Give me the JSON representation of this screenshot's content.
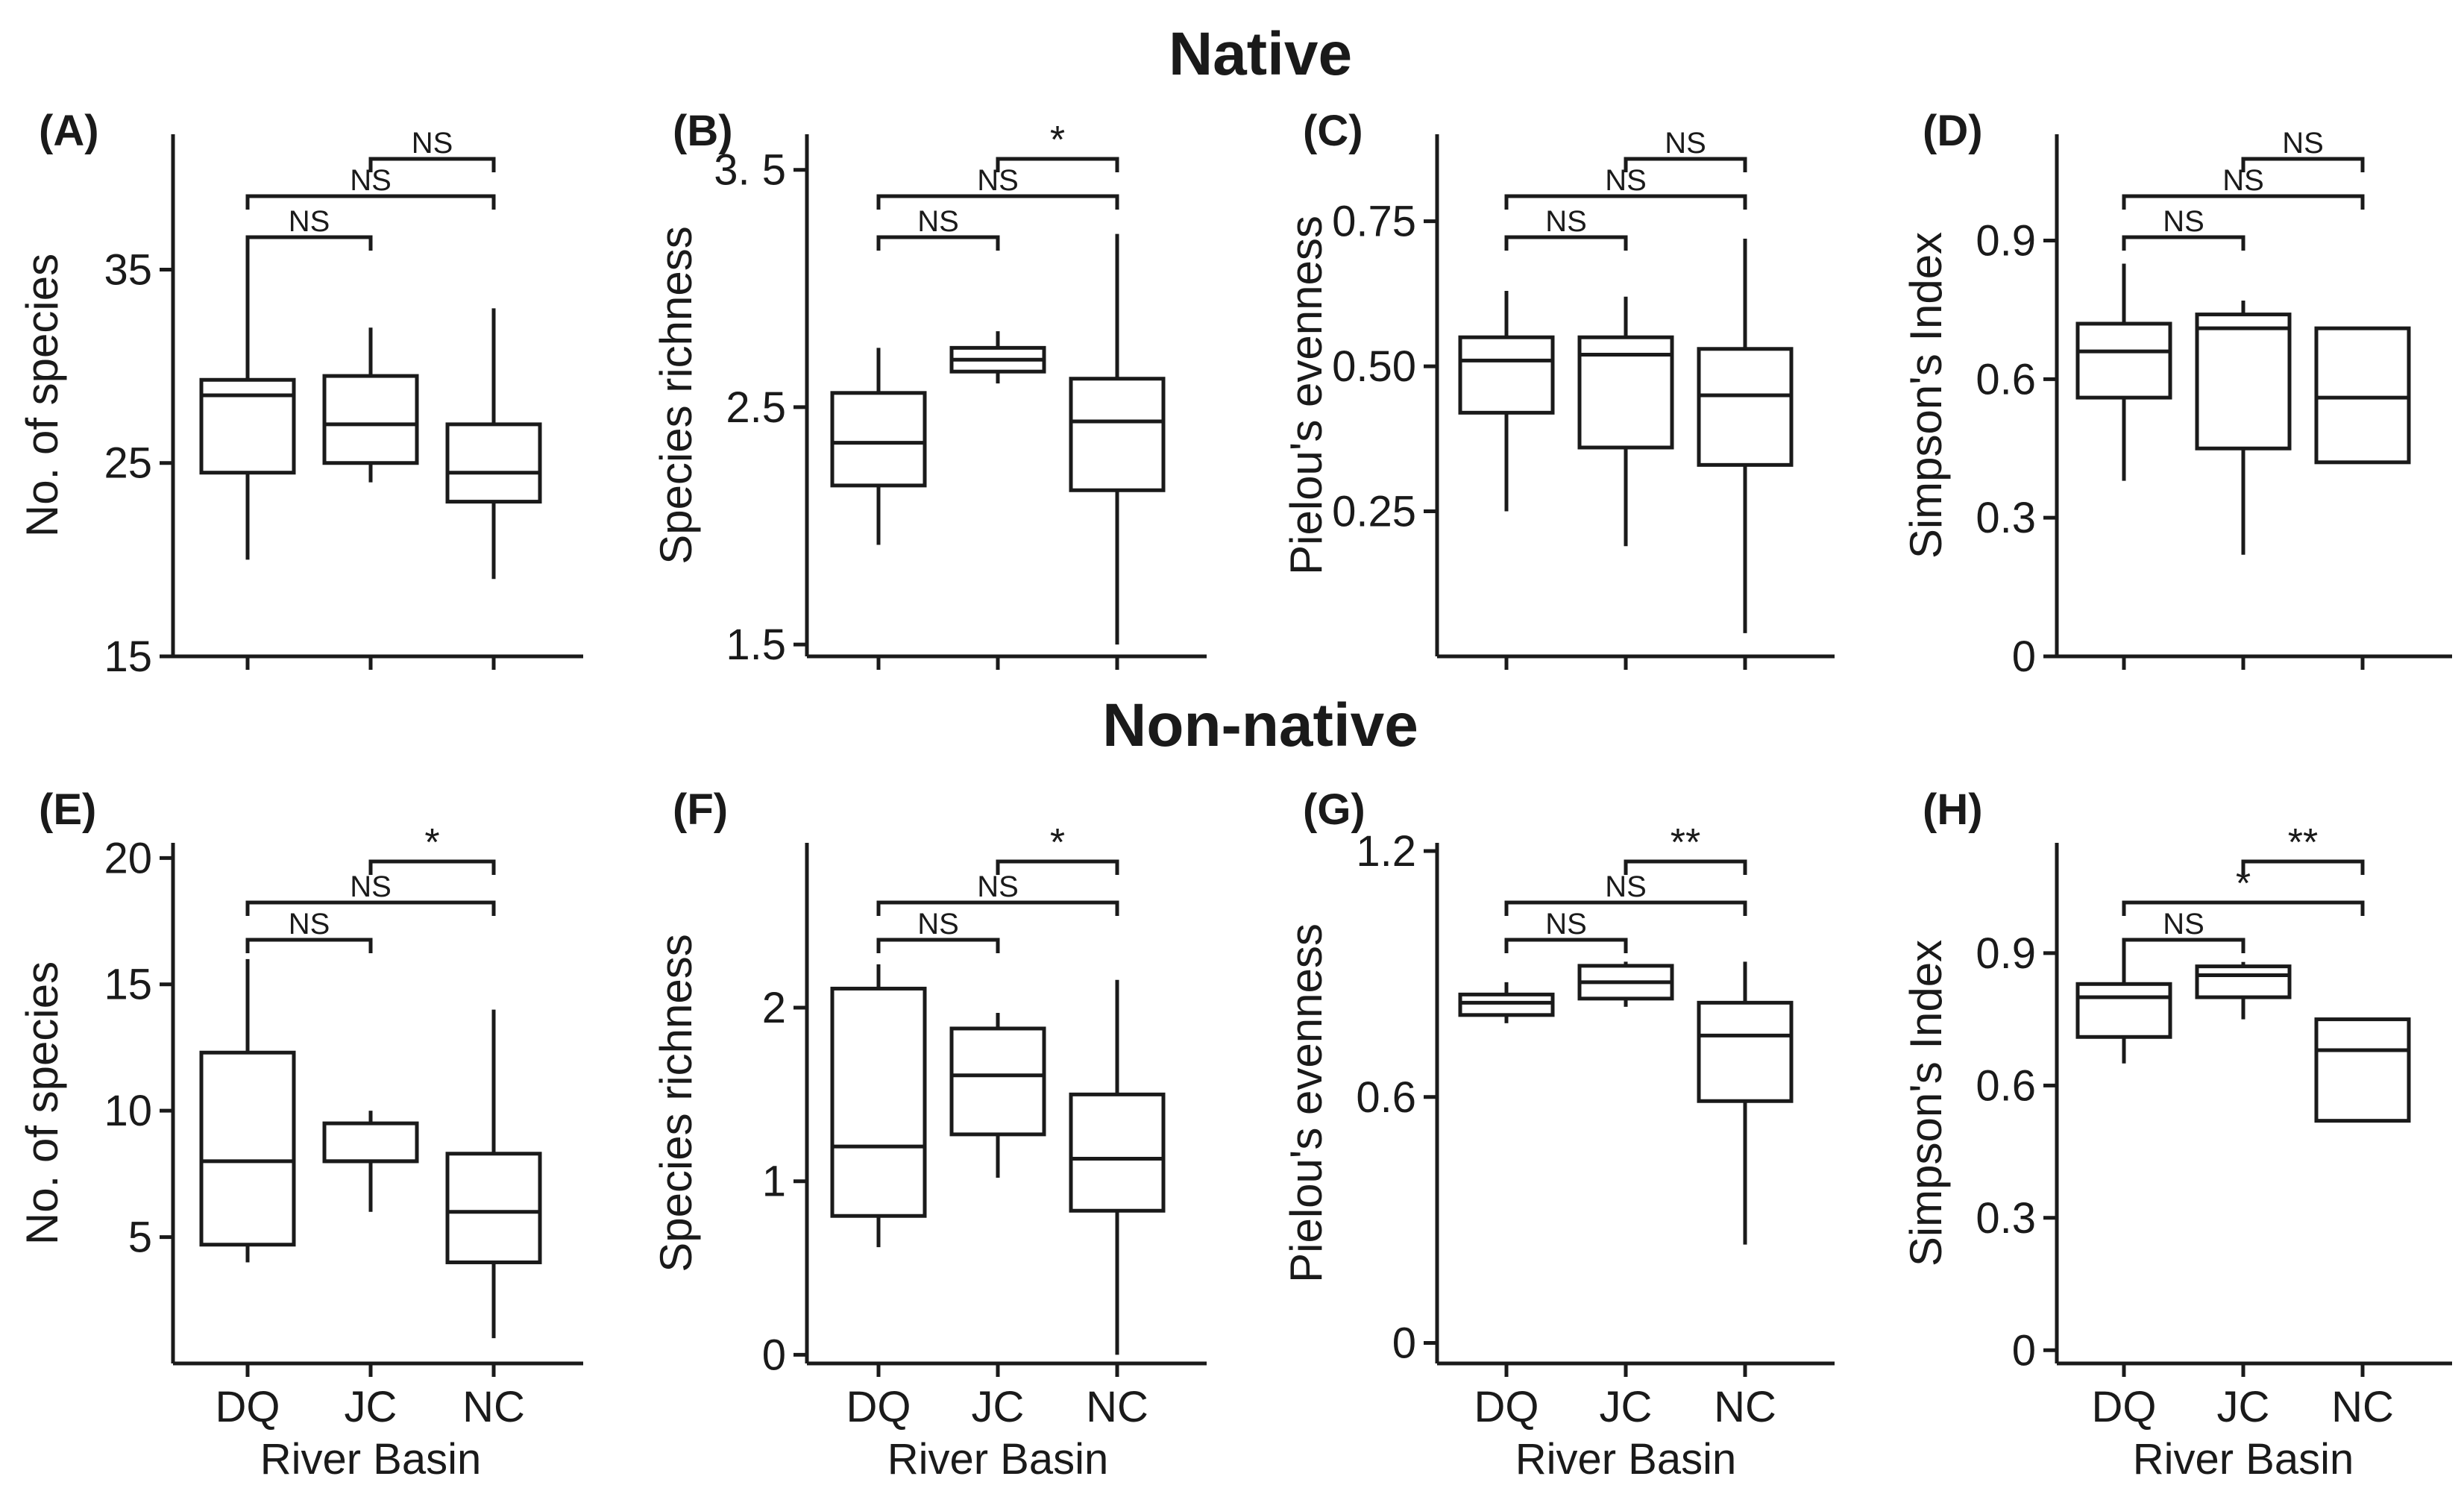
{
  "figure": {
    "row_titles": [
      "Native",
      "Non-native"
    ],
    "xlabel": "River Basin",
    "categories": [
      "DQ",
      "JC",
      "NC"
    ]
  },
  "chart_data": [
    {
      "type": "boxplot",
      "panel": "(A)",
      "group": "Native",
      "ylabel": "No. of species",
      "ylim": [
        15,
        42
      ],
      "yticks": [
        15,
        25,
        35
      ],
      "tick_labels": [
        "15",
        "25",
        "35"
      ],
      "categories": [
        "DQ",
        "JC",
        "NC"
      ],
      "boxes": [
        {
          "category": "DQ",
          "whisker_low": 20,
          "q1": 24.5,
          "median": 28.5,
          "q3": 29.3,
          "whisker_high": 36
        },
        {
          "category": "JC",
          "whisker_low": 24,
          "q1": 25,
          "median": 27,
          "q3": 29.5,
          "whisker_high": 32
        },
        {
          "category": "NC",
          "whisker_low": 19,
          "q1": 23,
          "median": 24.5,
          "q3": 27,
          "whisker_high": 33
        }
      ],
      "comparisons": [
        {
          "from": "DQ",
          "to": "JC",
          "label": "NS",
          "level": 0
        },
        {
          "from": "DQ",
          "to": "NC",
          "label": "NS",
          "level": 1
        },
        {
          "from": "JC",
          "to": "NC",
          "label": "NS",
          "level": 2
        }
      ]
    },
    {
      "type": "boxplot",
      "panel": "(B)",
      "group": "Native",
      "ylabel": "Species richness",
      "ylim": [
        1.45,
        3.65
      ],
      "yticks": [
        1.5,
        2.5,
        3.5
      ],
      "tick_labels": [
        "1.5",
        "2.5",
        "3. 5"
      ],
      "categories": [
        "DQ",
        "JC",
        "NC"
      ],
      "boxes": [
        {
          "category": "DQ",
          "whisker_low": 1.92,
          "q1": 2.17,
          "median": 2.35,
          "q3": 2.56,
          "whisker_high": 2.75
        },
        {
          "category": "JC",
          "whisker_low": 2.6,
          "q1": 2.65,
          "median": 2.7,
          "q3": 2.75,
          "whisker_high": 2.82
        },
        {
          "category": "NC",
          "whisker_low": 1.5,
          "q1": 2.15,
          "median": 2.44,
          "q3": 2.62,
          "whisker_high": 3.23
        }
      ],
      "comparisons": [
        {
          "from": "DQ",
          "to": "JC",
          "label": "NS",
          "level": 0
        },
        {
          "from": "DQ",
          "to": "NC",
          "label": "NS",
          "level": 1
        },
        {
          "from": "JC",
          "to": "NC",
          "label": "*",
          "level": 2
        }
      ]
    },
    {
      "type": "boxplot",
      "panel": "(C)",
      "group": "Native",
      "ylabel": "Pielou's evenness",
      "ylim": [
        0,
        0.9
      ],
      "yticks": [
        0.25,
        0.5,
        0.75
      ],
      "tick_labels": [
        "0.25",
        "0.50",
        "0.75"
      ],
      "categories": [
        "DQ",
        "JC",
        "NC"
      ],
      "boxes": [
        {
          "category": "DQ",
          "whisker_low": 0.25,
          "q1": 0.42,
          "median": 0.51,
          "q3": 0.55,
          "whisker_high": 0.63
        },
        {
          "category": "JC",
          "whisker_low": 0.19,
          "q1": 0.36,
          "median": 0.52,
          "q3": 0.55,
          "whisker_high": 0.62
        },
        {
          "category": "NC",
          "whisker_low": 0.04,
          "q1": 0.33,
          "median": 0.45,
          "q3": 0.53,
          "whisker_high": 0.72
        }
      ],
      "comparisons": [
        {
          "from": "DQ",
          "to": "JC",
          "label": "NS",
          "level": 0
        },
        {
          "from": "DQ",
          "to": "NC",
          "label": "NS",
          "level": 1
        },
        {
          "from": "JC",
          "to": "NC",
          "label": "NS",
          "level": 2
        }
      ]
    },
    {
      "type": "boxplot",
      "panel": "(D)",
      "group": "Native",
      "ylabel": "Simpson's Index",
      "ylim": [
        0,
        1.13
      ],
      "yticks": [
        0,
        0.3,
        0.6,
        0.9
      ],
      "tick_labels": [
        "0",
        "0.3",
        "0.6",
        "0.9"
      ],
      "categories": [
        "DQ",
        "JC",
        "NC"
      ],
      "boxes": [
        {
          "category": "DQ",
          "whisker_low": 0.38,
          "q1": 0.56,
          "median": 0.66,
          "q3": 0.72,
          "whisker_high": 0.85
        },
        {
          "category": "JC",
          "whisker_low": 0.22,
          "q1": 0.45,
          "median": 0.71,
          "q3": 0.74,
          "whisker_high": 0.77
        },
        {
          "category": "NC",
          "whisker_low": 0.42,
          "q1": 0.42,
          "median": 0.56,
          "q3": 0.71,
          "whisker_high": 0.71
        }
      ],
      "comparisons": [
        {
          "from": "DQ",
          "to": "JC",
          "label": "NS",
          "level": 0
        },
        {
          "from": "DQ",
          "to": "NC",
          "label": "NS",
          "level": 1
        },
        {
          "from": "JC",
          "to": "NC",
          "label": "NS",
          "level": 2
        }
      ]
    },
    {
      "type": "boxplot",
      "panel": "(E)",
      "group": "Non-native",
      "ylabel": "No. of species",
      "ylim": [
        0,
        20.6
      ],
      "yticks": [
        5,
        10,
        15,
        20
      ],
      "tick_labels": [
        "5",
        "10",
        "15",
        "20"
      ],
      "categories": [
        "DQ",
        "JC",
        "NC"
      ],
      "boxes": [
        {
          "category": "DQ",
          "whisker_low": 4,
          "q1": 4.7,
          "median": 8,
          "q3": 12.3,
          "whisker_high": 16
        },
        {
          "category": "JC",
          "whisker_low": 6,
          "q1": 8,
          "median": 8,
          "q3": 9.5,
          "whisker_high": 10
        },
        {
          "category": "NC",
          "whisker_low": 1,
          "q1": 4,
          "median": 6,
          "q3": 8.3,
          "whisker_high": 14
        }
      ],
      "comparisons": [
        {
          "from": "DQ",
          "to": "JC",
          "label": "NS",
          "level": 0
        },
        {
          "from": "DQ",
          "to": "NC",
          "label": "NS",
          "level": 1
        },
        {
          "from": "JC",
          "to": "NC",
          "label": "*",
          "level": 2
        }
      ]
    },
    {
      "type": "boxplot",
      "panel": "(F)",
      "group": "Non-native",
      "ylabel": "Species richness",
      "ylim": [
        -0.05,
        2.95
      ],
      "yticks": [
        0,
        1,
        2
      ],
      "tick_labels": [
        "0",
        "1",
        "2"
      ],
      "categories": [
        "DQ",
        "JC",
        "NC"
      ],
      "boxes": [
        {
          "category": "DQ",
          "whisker_low": 0.62,
          "q1": 0.8,
          "median": 1.2,
          "q3": 2.11,
          "whisker_high": 2.25
        },
        {
          "category": "JC",
          "whisker_low": 1.02,
          "q1": 1.27,
          "median": 1.61,
          "q3": 1.88,
          "whisker_high": 1.97
        },
        {
          "category": "NC",
          "whisker_low": 0,
          "q1": 0.83,
          "median": 1.13,
          "q3": 1.5,
          "whisker_high": 2.16
        }
      ],
      "comparisons": [
        {
          "from": "DQ",
          "to": "JC",
          "label": "NS",
          "level": 0
        },
        {
          "from": "DQ",
          "to": "NC",
          "label": "NS",
          "level": 1
        },
        {
          "from": "JC",
          "to": "NC",
          "label": "*",
          "level": 2
        }
      ]
    },
    {
      "type": "boxplot",
      "panel": "(G)",
      "group": "Non-native",
      "ylabel": "Pielou's evenness",
      "ylim": [
        -0.05,
        1.22
      ],
      "yticks": [
        0,
        0.6,
        1.2
      ],
      "tick_labels": [
        "0",
        "0.6",
        "1.2"
      ],
      "categories": [
        "DQ",
        "JC",
        "NC"
      ],
      "boxes": [
        {
          "category": "DQ",
          "whisker_low": 0.78,
          "q1": 0.8,
          "median": 0.83,
          "q3": 0.85,
          "whisker_high": 0.88
        },
        {
          "category": "JC",
          "whisker_low": 0.82,
          "q1": 0.84,
          "median": 0.88,
          "q3": 0.92,
          "whisker_high": 0.93
        },
        {
          "category": "NC",
          "whisker_low": 0.24,
          "q1": 0.59,
          "median": 0.75,
          "q3": 0.83,
          "whisker_high": 0.93
        }
      ],
      "comparisons": [
        {
          "from": "DQ",
          "to": "JC",
          "label": "NS",
          "level": 0
        },
        {
          "from": "DQ",
          "to": "NC",
          "label": "NS",
          "level": 1
        },
        {
          "from": "JC",
          "to": "NC",
          "label": "**",
          "level": 2
        }
      ]
    },
    {
      "type": "boxplot",
      "panel": "(H)",
      "group": "Non-native",
      "ylabel": "Simpson's Index",
      "ylim": [
        -0.03,
        1.15
      ],
      "yticks": [
        0,
        0.3,
        0.6,
        0.9
      ],
      "tick_labels": [
        "0",
        "0.3",
        "0.6",
        "0.9"
      ],
      "categories": [
        "DQ",
        "JC",
        "NC"
      ],
      "boxes": [
        {
          "category": "DQ",
          "whisker_low": 0.65,
          "q1": 0.71,
          "median": 0.8,
          "q3": 0.83,
          "whisker_high": 0.91
        },
        {
          "category": "JC",
          "whisker_low": 0.75,
          "q1": 0.8,
          "median": 0.85,
          "q3": 0.87,
          "whisker_high": 0.88
        },
        {
          "category": "NC",
          "whisker_low": 0.52,
          "q1": 0.52,
          "median": 0.68,
          "q3": 0.75,
          "whisker_high": 0.75
        }
      ],
      "comparisons": [
        {
          "from": "DQ",
          "to": "JC",
          "label": "NS",
          "level": 0
        },
        {
          "from": "DQ",
          "to": "NC",
          "label": "*",
          "level": 1
        },
        {
          "from": "JC",
          "to": "NC",
          "label": "**",
          "level": 2
        }
      ]
    }
  ]
}
